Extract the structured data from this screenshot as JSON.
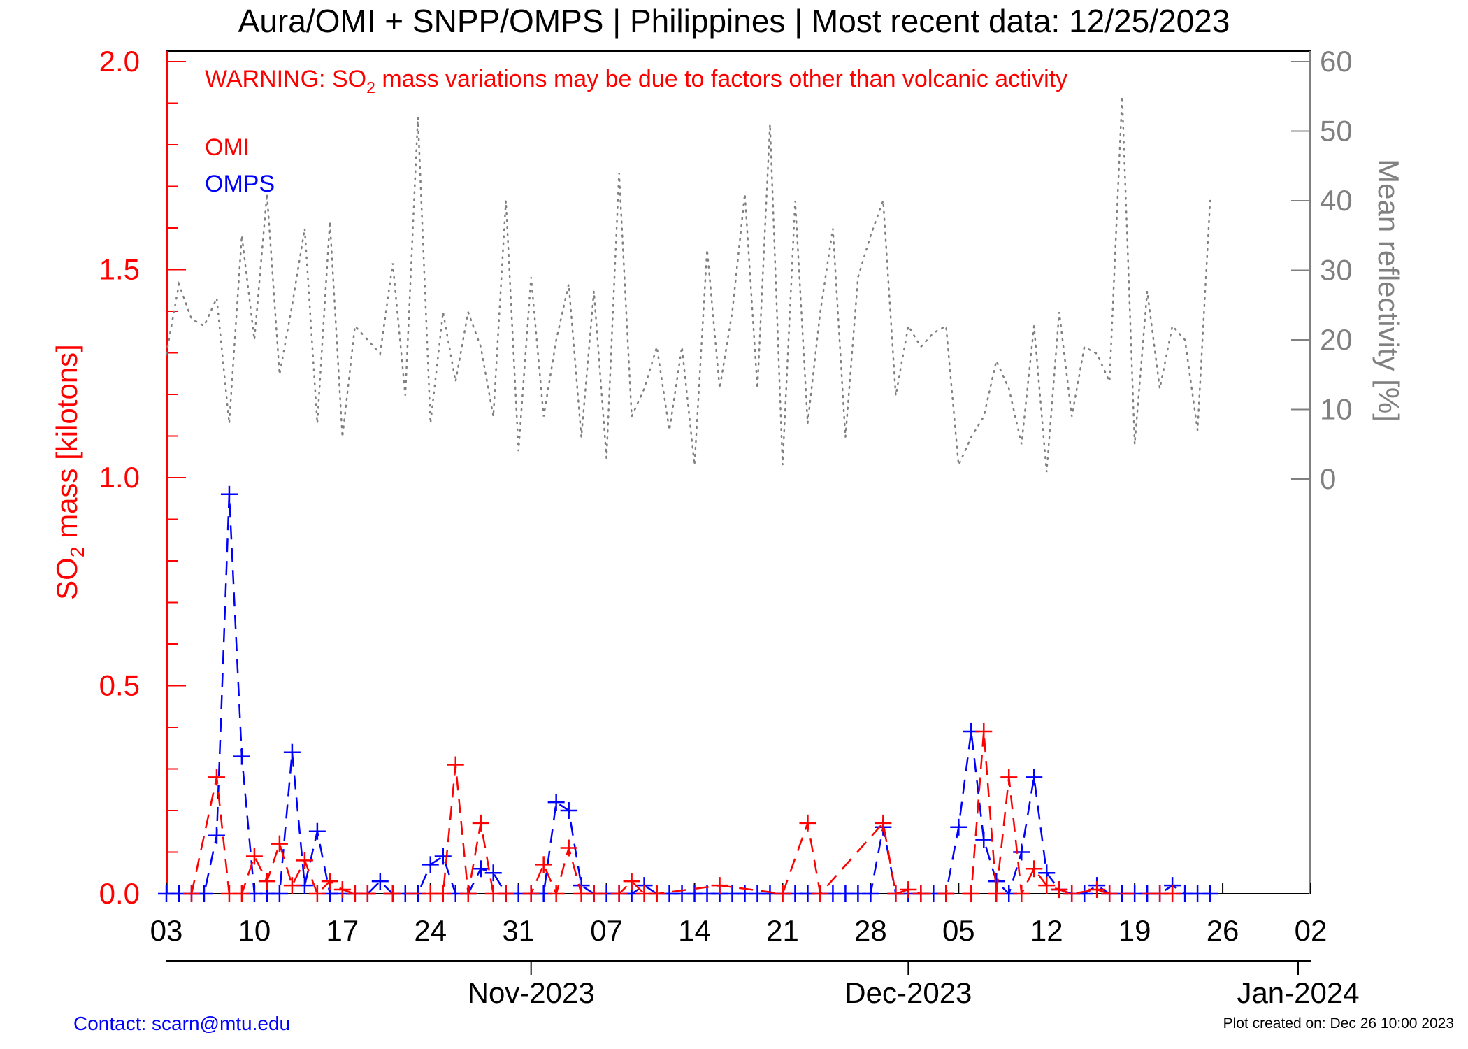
{
  "chart_data": {
    "type": "line",
    "title": "Aura/OMI + SNPP/OMPS | Philippines | Most recent data: 12/25/2023",
    "warning": {
      "prefix": "WARNING: SO",
      "subscript": "2",
      "suffix": " mass variations may be due to factors other than volcanic activity"
    },
    "ylabel_left": {
      "prefix": "SO",
      "subscript": "2",
      "suffix": " mass [kilotons]"
    },
    "ylabel_right": "Mean reflectivity [%]",
    "ylim_left": [
      0,
      2.0
    ],
    "ylim_right": [
      0,
      60
    ],
    "x_range_days": [
      "2023-10-03",
      "2024-01-02"
    ],
    "x_tick_labels": [
      "03",
      "10",
      "17",
      "24",
      "31",
      "07",
      "14",
      "21",
      "28",
      "05",
      "12",
      "19",
      "26",
      "02"
    ],
    "month_labels": [
      {
        "date": "2023-11-01",
        "label": "Nov-2023"
      },
      {
        "date": "2023-12-01",
        "label": "Dec-2023"
      },
      {
        "date": "2024-01-01",
        "label": "Jan-2024"
      }
    ],
    "y_ticks_left": [
      "0.0",
      "0.5",
      "1.0",
      "1.5",
      "2.0"
    ],
    "y_ticks_right": [
      "0",
      "10",
      "20",
      "30",
      "40",
      "50",
      "60"
    ],
    "legend_placement": "top-left",
    "colors": {
      "omi": "#ff0000",
      "omps": "#0000ff",
      "reflectivity": "#808080",
      "left_axis": "#ff0000",
      "right_axis": "#808080"
    },
    "series": [
      {
        "name": "OMI",
        "color": "#ff0000",
        "points": [
          [
            "2023-10-05",
            0.0
          ],
          [
            "2023-10-07",
            0.28
          ],
          [
            "2023-10-08",
            0.0
          ],
          [
            "2023-10-09",
            0.0
          ],
          [
            "2023-10-10",
            0.09
          ],
          [
            "2023-10-11",
            0.03
          ],
          [
            "2023-10-12",
            0.12
          ],
          [
            "2023-10-13",
            0.02
          ],
          [
            "2023-10-14",
            0.08
          ],
          [
            "2023-10-15",
            0.0
          ],
          [
            "2023-10-16",
            0.03
          ],
          [
            "2023-10-17",
            0.01
          ],
          [
            "2023-10-18",
            0.0
          ],
          [
            "2023-10-19",
            0.0
          ],
          [
            "2023-10-21",
            0.0
          ],
          [
            "2023-10-24",
            0.0
          ],
          [
            "2023-10-25",
            0.0
          ],
          [
            "2023-10-26",
            0.31
          ],
          [
            "2023-10-27",
            0.0
          ],
          [
            "2023-10-28",
            0.17
          ],
          [
            "2023-10-29",
            0.0
          ],
          [
            "2023-10-30",
            0.0
          ],
          [
            "2023-11-01",
            0.0
          ],
          [
            "2023-11-02",
            0.07
          ],
          [
            "2023-11-03",
            0.0
          ],
          [
            "2023-11-04",
            0.11
          ],
          [
            "2023-11-05",
            0.0
          ],
          [
            "2023-11-06",
            0.0
          ],
          [
            "2023-11-08",
            0.0
          ],
          [
            "2023-11-09",
            0.03
          ],
          [
            "2023-11-10",
            0.0
          ],
          [
            "2023-11-11",
            0.0
          ],
          [
            "2023-11-16",
            0.02
          ],
          [
            "2023-11-21",
            0.0
          ],
          [
            "2023-11-23",
            0.17
          ],
          [
            "2023-11-24",
            0.0
          ],
          [
            "2023-11-29",
            0.17
          ],
          [
            "2023-11-30",
            0.0
          ],
          [
            "2023-12-01",
            0.01
          ],
          [
            "2023-12-02",
            0.0
          ],
          [
            "2023-12-04",
            0.0
          ],
          [
            "2023-12-06",
            0.0
          ],
          [
            "2023-12-07",
            0.39
          ],
          [
            "2023-12-08",
            0.0
          ],
          [
            "2023-12-09",
            0.28
          ],
          [
            "2023-12-10",
            0.0
          ],
          [
            "2023-12-11",
            0.06
          ],
          [
            "2023-12-12",
            0.02
          ],
          [
            "2023-12-13",
            0.01
          ],
          [
            "2023-12-14",
            0.0
          ],
          [
            "2023-12-16",
            0.01
          ],
          [
            "2023-12-17",
            0.0
          ],
          [
            "2023-12-21",
            0.0
          ],
          [
            "2023-12-22",
            0.0
          ]
        ]
      },
      {
        "name": "OMPS",
        "color": "#0000ff",
        "points": [
          [
            "2023-10-03",
            0.0
          ],
          [
            "2023-10-04",
            0.0
          ],
          [
            "2023-10-05",
            0.0
          ],
          [
            "2023-10-06",
            0.0
          ],
          [
            "2023-10-07",
            0.14
          ],
          [
            "2023-10-08",
            0.96
          ],
          [
            "2023-10-09",
            0.33
          ],
          [
            "2023-10-10",
            0.0
          ],
          [
            "2023-10-11",
            0.0
          ],
          [
            "2023-10-12",
            0.0
          ],
          [
            "2023-10-13",
            0.34
          ],
          [
            "2023-10-14",
            0.02
          ],
          [
            "2023-10-15",
            0.15
          ],
          [
            "2023-10-16",
            0.0
          ],
          [
            "2023-10-17",
            0.0
          ],
          [
            "2023-10-18",
            0.0
          ],
          [
            "2023-10-19",
            0.0
          ],
          [
            "2023-10-20",
            0.03
          ],
          [
            "2023-10-21",
            0.0
          ],
          [
            "2023-10-22",
            0.0
          ],
          [
            "2023-10-23",
            0.0
          ],
          [
            "2023-10-24",
            0.07
          ],
          [
            "2023-10-25",
            0.09
          ],
          [
            "2023-10-26",
            0.0
          ],
          [
            "2023-10-27",
            0.0
          ],
          [
            "2023-10-28",
            0.06
          ],
          [
            "2023-10-29",
            0.05
          ],
          [
            "2023-10-30",
            0.0
          ],
          [
            "2023-10-31",
            0.0
          ],
          [
            "2023-11-01",
            0.0
          ],
          [
            "2023-11-02",
            0.0
          ],
          [
            "2023-11-03",
            0.22
          ],
          [
            "2023-11-04",
            0.2
          ],
          [
            "2023-11-05",
            0.02
          ],
          [
            "2023-11-06",
            0.0
          ],
          [
            "2023-11-07",
            0.0
          ],
          [
            "2023-11-08",
            0.0
          ],
          [
            "2023-11-09",
            0.0
          ],
          [
            "2023-11-10",
            0.02
          ],
          [
            "2023-11-11",
            0.0
          ],
          [
            "2023-11-12",
            0.0
          ],
          [
            "2023-11-13",
            0.0
          ],
          [
            "2023-11-14",
            0.0
          ],
          [
            "2023-11-15",
            0.0
          ],
          [
            "2023-11-16",
            0.0
          ],
          [
            "2023-11-17",
            0.0
          ],
          [
            "2023-11-18",
            0.0
          ],
          [
            "2023-11-19",
            0.0
          ],
          [
            "2023-11-20",
            0.0
          ],
          [
            "2023-11-21",
            0.0
          ],
          [
            "2023-11-22",
            0.0
          ],
          [
            "2023-11-23",
            0.0
          ],
          [
            "2023-11-24",
            0.0
          ],
          [
            "2023-11-25",
            0.0
          ],
          [
            "2023-11-26",
            0.0
          ],
          [
            "2023-11-27",
            0.0
          ],
          [
            "2023-11-28",
            0.0
          ],
          [
            "2023-11-29",
            0.16
          ],
          [
            "2023-11-30",
            0.0
          ],
          [
            "2023-12-01",
            0.0
          ],
          [
            "2023-12-02",
            0.0
          ],
          [
            "2023-12-03",
            0.0
          ],
          [
            "2023-12-04",
            0.0
          ],
          [
            "2023-12-05",
            0.16
          ],
          [
            "2023-12-06",
            0.39
          ],
          [
            "2023-12-07",
            0.13
          ],
          [
            "2023-12-08",
            0.03
          ],
          [
            "2023-12-09",
            0.0
          ],
          [
            "2023-12-10",
            0.1
          ],
          [
            "2023-12-11",
            0.28
          ],
          [
            "2023-12-12",
            0.05
          ],
          [
            "2023-12-13",
            0.01
          ],
          [
            "2023-12-14",
            0.0
          ],
          [
            "2023-12-15",
            0.0
          ],
          [
            "2023-12-16",
            0.02
          ],
          [
            "2023-12-17",
            0.0
          ],
          [
            "2023-12-18",
            0.0
          ],
          [
            "2023-12-19",
            0.0
          ],
          [
            "2023-12-20",
            0.0
          ],
          [
            "2023-12-21",
            0.0
          ],
          [
            "2023-12-22",
            0.02
          ],
          [
            "2023-12-23",
            0.0
          ],
          [
            "2023-12-24",
            0.0
          ],
          [
            "2023-12-25",
            0.0
          ]
        ]
      },
      {
        "name": "Mean reflectivity",
        "color": "#808080",
        "axis": "right",
        "points": [
          [
            "2023-10-03",
            18
          ],
          [
            "2023-10-04",
            28
          ],
          [
            "2023-10-05",
            23
          ],
          [
            "2023-10-06",
            22
          ],
          [
            "2023-10-07",
            26
          ],
          [
            "2023-10-08",
            8
          ],
          [
            "2023-10-09",
            35
          ],
          [
            "2023-10-10",
            20
          ],
          [
            "2023-10-11",
            41
          ],
          [
            "2023-10-12",
            15
          ],
          [
            "2023-10-13",
            25
          ],
          [
            "2023-10-14",
            36
          ],
          [
            "2023-10-15",
            8
          ],
          [
            "2023-10-16",
            37
          ],
          [
            "2023-10-17",
            6
          ],
          [
            "2023-10-18",
            22
          ],
          [
            "2023-10-19",
            20
          ],
          [
            "2023-10-20",
            18
          ],
          [
            "2023-10-21",
            31
          ],
          [
            "2023-10-22",
            12
          ],
          [
            "2023-10-23",
            52
          ],
          [
            "2023-10-24",
            8
          ],
          [
            "2023-10-25",
            24
          ],
          [
            "2023-10-26",
            14
          ],
          [
            "2023-10-27",
            24
          ],
          [
            "2023-10-28",
            19
          ],
          [
            "2023-10-29",
            9
          ],
          [
            "2023-10-30",
            40
          ],
          [
            "2023-10-31",
            4
          ],
          [
            "2023-11-01",
            29
          ],
          [
            "2023-11-02",
            9
          ],
          [
            "2023-11-03",
            20
          ],
          [
            "2023-11-04",
            28
          ],
          [
            "2023-11-05",
            6
          ],
          [
            "2023-11-06",
            27
          ],
          [
            "2023-11-07",
            3
          ],
          [
            "2023-11-08",
            44
          ],
          [
            "2023-11-09",
            9
          ],
          [
            "2023-11-10",
            13
          ],
          [
            "2023-11-11",
            19
          ],
          [
            "2023-11-12",
            7
          ],
          [
            "2023-11-13",
            19
          ],
          [
            "2023-11-14",
            2
          ],
          [
            "2023-11-15",
            33
          ],
          [
            "2023-11-16",
            13
          ],
          [
            "2023-11-17",
            24
          ],
          [
            "2023-11-18",
            41
          ],
          [
            "2023-11-19",
            13
          ],
          [
            "2023-11-20",
            51
          ],
          [
            "2023-11-21",
            2
          ],
          [
            "2023-11-22",
            40
          ],
          [
            "2023-11-23",
            8
          ],
          [
            "2023-11-24",
            24
          ],
          [
            "2023-11-25",
            36
          ],
          [
            "2023-11-26",
            6
          ],
          [
            "2023-11-27",
            29
          ],
          [
            "2023-11-28",
            35
          ],
          [
            "2023-11-29",
            40
          ],
          [
            "2023-11-30",
            12
          ],
          [
            "2023-12-01",
            22
          ],
          [
            "2023-12-02",
            19
          ],
          [
            "2023-12-03",
            21
          ],
          [
            "2023-12-04",
            22
          ],
          [
            "2023-12-05",
            2
          ],
          [
            "2023-12-06",
            6
          ],
          [
            "2023-12-07",
            9
          ],
          [
            "2023-12-08",
            17
          ],
          [
            "2023-12-09",
            13
          ],
          [
            "2023-12-10",
            5
          ],
          [
            "2023-12-11",
            22
          ],
          [
            "2023-12-12",
            1
          ],
          [
            "2023-12-13",
            24
          ],
          [
            "2023-12-14",
            9
          ],
          [
            "2023-12-15",
            19
          ],
          [
            "2023-12-16",
            18
          ],
          [
            "2023-12-17",
            14
          ],
          [
            "2023-12-18",
            55
          ],
          [
            "2023-12-19",
            5
          ],
          [
            "2023-12-20",
            27
          ],
          [
            "2023-12-21",
            13
          ],
          [
            "2023-12-22",
            22
          ],
          [
            "2023-12-23",
            20
          ],
          [
            "2023-12-24",
            7
          ],
          [
            "2023-12-25",
            40
          ]
        ]
      }
    ]
  },
  "footer": {
    "contact": "Contact: scarn@mtu.edu",
    "created": "Plot created on: Dec 26 10:00 2023"
  }
}
